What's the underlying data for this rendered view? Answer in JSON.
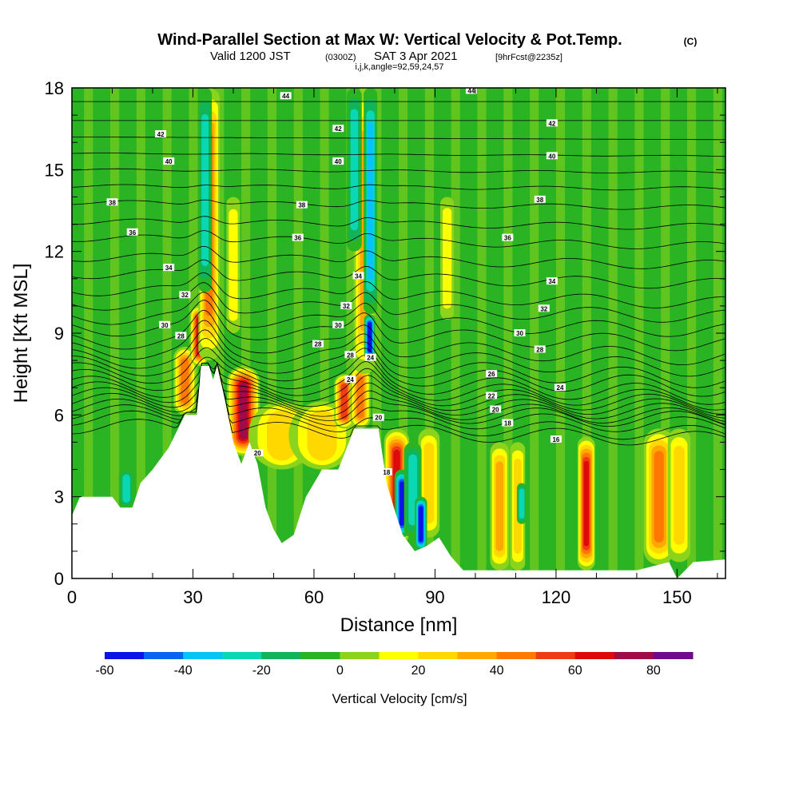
{
  "chart_data": {
    "type": "heatmap",
    "title": "Wind-Parallel Section at Max W: Vertical Velocity & Pot.Temp.",
    "title_mark": "(C)",
    "subtitle_valid": "Valid 1200 JST",
    "subtitle_utc": "(0300Z)",
    "subtitle_date": "SAT 3 Apr 2021",
    "subtitle_fcst": "[9hrFcst@2235z]",
    "subtitle_ijk": "i,j,k,angle=92,59,24,57",
    "xlabel": "Distance [nm]",
    "ylabel": "Height [Kft MSL]",
    "xlim": [
      0,
      162
    ],
    "ylim": [
      0,
      18
    ],
    "x_ticks": [
      0,
      30,
      60,
      90,
      120,
      150
    ],
    "y_ticks": [
      0,
      3,
      6,
      9,
      12,
      15,
      18
    ],
    "colorbar": {
      "label": "Vertical Velocity [cm/s]",
      "min": -60,
      "max": 90,
      "step": 10,
      "tick_values": [
        -60,
        -40,
        -20,
        0,
        20,
        40,
        60,
        80
      ],
      "colors": [
        "#0a14e6",
        "#0a64f0",
        "#08c4f4",
        "#0ad8b4",
        "#12b45a",
        "#2ab424",
        "#8cd41c",
        "#ffff00",
        "#ffd800",
        "#ffa800",
        "#ff7800",
        "#f03c14",
        "#dc0a0a",
        "#a00a46",
        "#6e0a8c"
      ]
    },
    "terrain_kft": [
      [
        0,
        2.3
      ],
      [
        2,
        3.0
      ],
      [
        10,
        3.0
      ],
      [
        12,
        2.6
      ],
      [
        15,
        2.6
      ],
      [
        17,
        3.5
      ],
      [
        20,
        4.0
      ],
      [
        24,
        4.8
      ],
      [
        28,
        6.0
      ],
      [
        31,
        6.0
      ],
      [
        32,
        7.8
      ],
      [
        34,
        7.8
      ],
      [
        35,
        7.3
      ],
      [
        36,
        7.8
      ],
      [
        38,
        6.5
      ],
      [
        40,
        5.0
      ],
      [
        42,
        4.2
      ],
      [
        44,
        5.0
      ],
      [
        46,
        4.2
      ],
      [
        48,
        2.6
      ],
      [
        50,
        1.8
      ],
      [
        52,
        1.3
      ],
      [
        55,
        1.6
      ],
      [
        58,
        3.0
      ],
      [
        62,
        4.0
      ],
      [
        66,
        4.0
      ],
      [
        70,
        5.5
      ],
      [
        72,
        5.5
      ],
      [
        76,
        5.5
      ],
      [
        78,
        3.5
      ],
      [
        80,
        2.5
      ],
      [
        82,
        1.6
      ],
      [
        85,
        1.0
      ],
      [
        88,
        1.2
      ],
      [
        91,
        1.5
      ],
      [
        94,
        0.8
      ],
      [
        97,
        0.3
      ],
      [
        105,
        0.3
      ],
      [
        125,
        0.3
      ],
      [
        140,
        0.3
      ],
      [
        148,
        0.6
      ],
      [
        150,
        0.0
      ],
      [
        154,
        0.6
      ],
      [
        162,
        0.7
      ]
    ],
    "updraft_cores": [
      {
        "x": 28.0,
        "z_bottom": 6.0,
        "z_top": 8.5,
        "w": 48,
        "width_nm": 1.6
      },
      {
        "x": 31.5,
        "z_bottom": 7.8,
        "z_top": 10.0,
        "w": 62,
        "width_nm": 1.2
      },
      {
        "x": 34.0,
        "z_bottom": 8.0,
        "z_top": 18.0,
        "w": 42,
        "width_nm": 1.5
      },
      {
        "x": 42.5,
        "z_bottom": 4.5,
        "z_top": 7.8,
        "w": 78,
        "width_nm": 2.4
      },
      {
        "x": 52.0,
        "z_bottom": 4.0,
        "z_top": 6.5,
        "w": 22,
        "width_nm": 5.0
      },
      {
        "x": 62.0,
        "z_bottom": 4.0,
        "z_top": 6.5,
        "w": 28,
        "width_nm": 5.0
      },
      {
        "x": 67.5,
        "z_bottom": 5.5,
        "z_top": 7.5,
        "w": 55,
        "width_nm": 1.4
      },
      {
        "x": 71.5,
        "z_bottom": 5.5,
        "z_top": 7.8,
        "w": 48,
        "width_nm": 1.4
      },
      {
        "x": 72.5,
        "z_bottom": 7.5,
        "z_top": 18.0,
        "w": 32,
        "width_nm": 1.5
      },
      {
        "x": 80.5,
        "z_bottom": 1.2,
        "z_top": 5.5,
        "w": 62,
        "width_nm": 1.8
      },
      {
        "x": 88.5,
        "z_bottom": 1.5,
        "z_top": 5.5,
        "w": 28,
        "width_nm": 1.5
      },
      {
        "x": 106.0,
        "z_bottom": 0.3,
        "z_top": 5.0,
        "w": 32,
        "width_nm": 1.3
      },
      {
        "x": 110.5,
        "z_bottom": 0.3,
        "z_top": 5.0,
        "w": 22,
        "width_nm": 1.0
      },
      {
        "x": 127.5,
        "z_bottom": 0.3,
        "z_top": 5.2,
        "w": 65,
        "width_nm": 1.2
      },
      {
        "x": 145.5,
        "z_bottom": 0.5,
        "z_top": 5.5,
        "w": 48,
        "width_nm": 2.2
      },
      {
        "x": 150.5,
        "z_bottom": 0.6,
        "z_top": 5.5,
        "w": 22,
        "width_nm": 1.6
      },
      {
        "x": 93.0,
        "z_bottom": 9.5,
        "z_top": 14.0,
        "w": 18,
        "width_nm": 0.9
      },
      {
        "x": 40.0,
        "z_bottom": 9.0,
        "z_top": 14.0,
        "w": 16,
        "width_nm": 0.9
      }
    ],
    "downdraft_cores": [
      {
        "x": 33.0,
        "z_bottom": 10.5,
        "z_top": 18.0,
        "w": -30,
        "width_nm": 0.9
      },
      {
        "x": 73.8,
        "z_bottom": 8.0,
        "z_top": 9.7,
        "w": -58,
        "width_nm": 0.7
      },
      {
        "x": 74.0,
        "z_bottom": 9.7,
        "z_top": 18.0,
        "w": -32,
        "width_nm": 0.9
      },
      {
        "x": 70.0,
        "z_bottom": 12.0,
        "z_top": 18.0,
        "w": -22,
        "width_nm": 1.0
      },
      {
        "x": 81.8,
        "z_bottom": 1.5,
        "z_top": 4.0,
        "w": -58,
        "width_nm": 1.0
      },
      {
        "x": 84.5,
        "z_bottom": 1.5,
        "z_top": 5.0,
        "w": -28,
        "width_nm": 1.2
      },
      {
        "x": 86.5,
        "z_bottom": 1.0,
        "z_top": 3.0,
        "w": -52,
        "width_nm": 0.8
      },
      {
        "x": 13.5,
        "z_bottom": 2.6,
        "z_top": 4.0,
        "w": -25,
        "width_nm": 1.0
      },
      {
        "x": 111.5,
        "z_bottom": 2.0,
        "z_top": 3.5,
        "w": -22,
        "width_nm": 0.6
      }
    ],
    "theta_contours": [
      {
        "value": 16,
        "level_left": 5.6,
        "level_right": 5.1
      },
      {
        "value": 17,
        "level_left": 5.9,
        "level_right": 5.3
      },
      {
        "value": 18,
        "level_left": 6.1,
        "level_right": 5.6
      },
      {
        "value": 19,
        "level_left": 6.3,
        "level_right": 5.8
      },
      {
        "value": 20,
        "level_left": 6.5,
        "level_right": 5.9
      },
      {
        "value": 21,
        "level_left": 6.7,
        "level_right": 6.05
      },
      {
        "value": 22,
        "level_left": 6.9,
        "level_right": 6.2
      },
      {
        "value": 23,
        "level_left": 7.1,
        "level_right": 6.35
      },
      {
        "value": 24,
        "level_left": 7.35,
        "level_right": 6.5
      },
      {
        "value": 25,
        "level_left": 7.6,
        "level_right": 6.7
      },
      {
        "value": 26,
        "level_left": 7.85,
        "level_right": 7.0
      },
      {
        "value": 27,
        "level_left": 8.1,
        "level_right": 7.3
      },
      {
        "value": 28,
        "level_left": 8.4,
        "level_right": 7.7
      },
      {
        "value": 29,
        "level_left": 8.75,
        "level_right": 8.1
      },
      {
        "value": 30,
        "level_left": 9.2,
        "level_right": 8.6
      },
      {
        "value": 31,
        "level_left": 9.6,
        "level_right": 9.1
      },
      {
        "value": 32,
        "level_left": 10.1,
        "level_right": 9.6
      },
      {
        "value": 33,
        "level_left": 10.6,
        "level_right": 10.1
      },
      {
        "value": 34,
        "level_left": 11.2,
        "level_right": 10.8
      },
      {
        "value": 35,
        "level_left": 11.8,
        "level_right": 11.5
      },
      {
        "value": 36,
        "level_left": 12.5,
        "level_right": 12.2
      },
      {
        "value": 37,
        "level_left": 13.1,
        "level_right": 12.9
      },
      {
        "value": 38,
        "level_left": 13.8,
        "level_right": 13.6
      },
      {
        "value": 39,
        "level_left": 14.4,
        "level_right": 14.3
      },
      {
        "value": 40,
        "level_left": 15.0,
        "level_right": 14.9
      },
      {
        "value": 41,
        "level_left": 15.6,
        "level_right": 15.5
      },
      {
        "value": 42,
        "level_left": 16.2,
        "level_right": 16.1
      },
      {
        "value": 43,
        "level_left": 16.8,
        "level_right": 16.8
      },
      {
        "value": 44,
        "level_left": 17.5,
        "level_right": 17.5
      }
    ],
    "contour_labels": [
      {
        "text": "44",
        "x": 53,
        "z": 17.7
      },
      {
        "text": "44",
        "x": 99,
        "z": 17.9
      },
      {
        "text": "42",
        "x": 22,
        "z": 16.3
      },
      {
        "text": "42",
        "x": 66,
        "z": 16.5
      },
      {
        "text": "42",
        "x": 119,
        "z": 16.7
      },
      {
        "text": "40",
        "x": 24,
        "z": 15.3
      },
      {
        "text": "40",
        "x": 66,
        "z": 15.3
      },
      {
        "text": "40",
        "x": 119,
        "z": 15.5
      },
      {
        "text": "38",
        "x": 10,
        "z": 13.8
      },
      {
        "text": "38",
        "x": 57,
        "z": 13.7
      },
      {
        "text": "38",
        "x": 116,
        "z": 13.9
      },
      {
        "text": "36",
        "x": 15,
        "z": 12.7
      },
      {
        "text": "36",
        "x": 56,
        "z": 12.5
      },
      {
        "text": "36",
        "x": 108,
        "z": 12.5
      },
      {
        "text": "34",
        "x": 24,
        "z": 11.4
      },
      {
        "text": "34",
        "x": 71,
        "z": 11.1
      },
      {
        "text": "34",
        "x": 119,
        "z": 10.9
      },
      {
        "text": "32",
        "x": 28,
        "z": 10.4
      },
      {
        "text": "32",
        "x": 68,
        "z": 10.0
      },
      {
        "text": "32",
        "x": 117,
        "z": 9.9
      },
      {
        "text": "30",
        "x": 23,
        "z": 9.3
      },
      {
        "text": "30",
        "x": 66,
        "z": 9.3
      },
      {
        "text": "30",
        "x": 111,
        "z": 9.0
      },
      {
        "text": "28",
        "x": 27,
        "z": 8.9
      },
      {
        "text": "28",
        "x": 61,
        "z": 8.6
      },
      {
        "text": "28",
        "x": 69,
        "z": 8.2
      },
      {
        "text": "28",
        "x": 116,
        "z": 8.4
      },
      {
        "text": "24",
        "x": 74,
        "z": 8.1
      },
      {
        "text": "24",
        "x": 69,
        "z": 7.3
      },
      {
        "text": "24",
        "x": 121,
        "z": 7.0
      },
      {
        "text": "26",
        "x": 104,
        "z": 7.5
      },
      {
        "text": "22",
        "x": 104,
        "z": 6.7
      },
      {
        "text": "20",
        "x": 105,
        "z": 6.2
      },
      {
        "text": "20",
        "x": 46,
        "z": 4.6
      },
      {
        "text": "20",
        "x": 76,
        "z": 5.9
      },
      {
        "text": "18",
        "x": 108,
        "z": 5.7
      },
      {
        "text": "18",
        "x": 78,
        "z": 3.9
      },
      {
        "text": "16",
        "x": 120,
        "z": 5.1
      }
    ]
  }
}
